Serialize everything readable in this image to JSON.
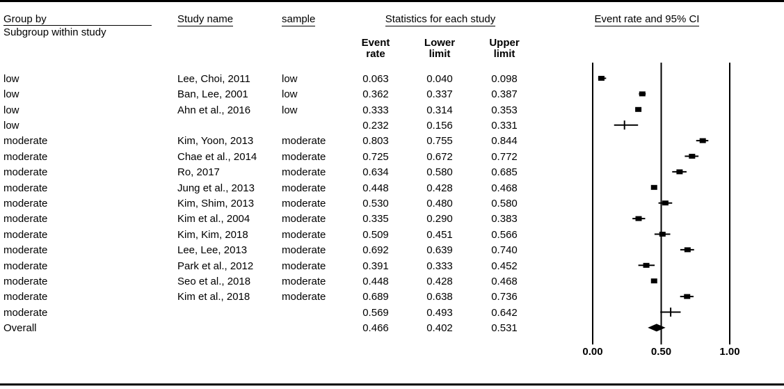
{
  "header": {
    "group_by": "Group by",
    "subgroup": "Subgroup within study",
    "study_name": "Study name",
    "sample": "sample",
    "statistics_title": "Statistics for each study",
    "plot_title": "Event rate and 95% CI",
    "stat_columns": {
      "event_l1": "Event",
      "event_l2": "rate",
      "lower_l1": "Lower",
      "lower_l2": "limit",
      "upper_l1": "Upper",
      "upper_l2": "limit"
    }
  },
  "colors": {
    "foreground": "#000000",
    "background": "#ffffff"
  },
  "chart_data": {
    "type": "forest",
    "title": "Event rate and 95% CI",
    "xlabel": "Event rate",
    "axis": {
      "xlim": [
        0,
        1
      ],
      "ticks": [
        0,
        0.5,
        1
      ],
      "tick_labels": [
        "0.00",
        "0.50",
        "1.00"
      ],
      "grid": false
    },
    "rows": [
      {
        "group": "low",
        "study": "Lee, Choi, 2011",
        "sample": "low",
        "event_rate": 0.063,
        "lower": 0.04,
        "upper": 0.098,
        "marker": "square"
      },
      {
        "group": "low",
        "study": "Ban, Lee, 2001",
        "sample": "low",
        "event_rate": 0.362,
        "lower": 0.337,
        "upper": 0.387,
        "marker": "square"
      },
      {
        "group": "low",
        "study": "Ahn et al., 2016",
        "sample": "low",
        "event_rate": 0.333,
        "lower": 0.314,
        "upper": 0.353,
        "marker": "square"
      },
      {
        "group": "low",
        "study": "",
        "sample": "",
        "event_rate": 0.232,
        "lower": 0.156,
        "upper": 0.331,
        "marker": "plus"
      },
      {
        "group": "moderate",
        "study": "Kim, Yoon, 2013",
        "sample": "moderate",
        "event_rate": 0.803,
        "lower": 0.755,
        "upper": 0.844,
        "marker": "square"
      },
      {
        "group": "moderate",
        "study": "Chae et al., 2014",
        "sample": "moderate",
        "event_rate": 0.725,
        "lower": 0.672,
        "upper": 0.772,
        "marker": "square"
      },
      {
        "group": "moderate",
        "study": "Ro, 2017",
        "sample": "moderate",
        "event_rate": 0.634,
        "lower": 0.58,
        "upper": 0.685,
        "marker": "square"
      },
      {
        "group": "moderate",
        "study": "Jung et al., 2013",
        "sample": "moderate",
        "event_rate": 0.448,
        "lower": 0.428,
        "upper": 0.468,
        "marker": "square"
      },
      {
        "group": "moderate",
        "study": "Kim, Shim, 2013",
        "sample": "moderate",
        "event_rate": 0.53,
        "lower": 0.48,
        "upper": 0.58,
        "marker": "square"
      },
      {
        "group": "moderate",
        "study": "Kim et al., 2004",
        "sample": "moderate",
        "event_rate": 0.335,
        "lower": 0.29,
        "upper": 0.383,
        "marker": "square"
      },
      {
        "group": "moderate",
        "study": "Kim, Kim, 2018",
        "sample": "moderate",
        "event_rate": 0.509,
        "lower": 0.451,
        "upper": 0.566,
        "marker": "square"
      },
      {
        "group": "moderate",
        "study": "Lee, Lee, 2013",
        "sample": "moderate",
        "event_rate": 0.692,
        "lower": 0.639,
        "upper": 0.74,
        "marker": "square"
      },
      {
        "group": "moderate",
        "study": "Park et al., 2012",
        "sample": "moderate",
        "event_rate": 0.391,
        "lower": 0.333,
        "upper": 0.452,
        "marker": "square"
      },
      {
        "group": "moderate",
        "study": "Seo et al., 2018",
        "sample": "moderate",
        "event_rate": 0.448,
        "lower": 0.428,
        "upper": 0.468,
        "marker": "square"
      },
      {
        "group": "moderate",
        "study": "Kim et al., 2018",
        "sample": "moderate",
        "event_rate": 0.689,
        "lower": 0.638,
        "upper": 0.736,
        "marker": "square"
      },
      {
        "group": "moderate",
        "study": "",
        "sample": "",
        "event_rate": 0.569,
        "lower": 0.493,
        "upper": 0.642,
        "marker": "plus"
      },
      {
        "group": "Overall",
        "study": "",
        "sample": "",
        "event_rate": 0.466,
        "lower": 0.402,
        "upper": 0.531,
        "marker": "diamond"
      }
    ]
  }
}
